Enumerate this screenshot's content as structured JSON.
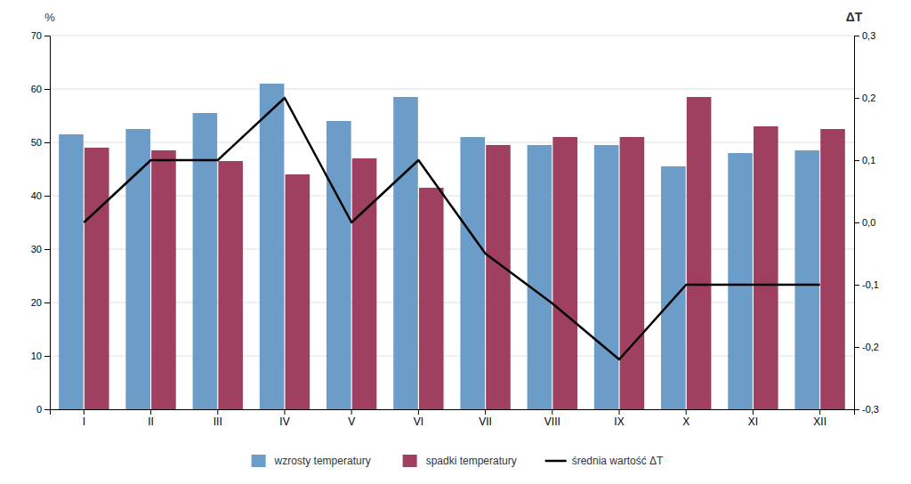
{
  "chart_data": {
    "type": "bar",
    "categories": [
      "I",
      "II",
      "III",
      "IV",
      "V",
      "VI",
      "VII",
      "VIII",
      "IX",
      "X",
      "XI",
      "XII"
    ],
    "series": [
      {
        "name": "wzrosty temperatury",
        "color": "#6B9DC8",
        "values": [
          51.5,
          52.5,
          55.5,
          61.0,
          54.0,
          58.5,
          51.0,
          49.5,
          49.5,
          45.5,
          48.0,
          48.5
        ]
      },
      {
        "name": "spadki temperatury",
        "color": "#A04060",
        "values": [
          49.0,
          48.5,
          46.5,
          44.0,
          47.0,
          41.5,
          49.5,
          51.0,
          51.0,
          58.5,
          53.0,
          52.5
        ]
      },
      {
        "name": "średnia wartość ΔT",
        "color": "#000000",
        "type": "line",
        "axis": "y2",
        "values": [
          0.0,
          0.1,
          0.1,
          0.2,
          0.0,
          0.1,
          -0.05,
          -0.13,
          -0.22,
          -0.1,
          -0.1,
          -0.1
        ]
      }
    ],
    "ylabel": "%",
    "y2label": "ΔT",
    "ylim": [
      0,
      70
    ],
    "yticks": [
      0,
      10,
      20,
      30,
      40,
      50,
      60,
      70
    ],
    "y2lim": [
      -0.3,
      0.3
    ],
    "y2ticks": [
      {
        "value": -0.3,
        "label": "-0,3"
      },
      {
        "value": -0.2,
        "label": "-0,2"
      },
      {
        "value": -0.1,
        "label": "-0,1"
      },
      {
        "value": 0.0,
        "label": "0,0"
      },
      {
        "value": 0.1,
        "label": "0,1"
      },
      {
        "value": 0.2,
        "label": "0,2"
      },
      {
        "value": 0.3,
        "label": "0,3"
      }
    ],
    "grid": true,
    "legend": "bottom"
  }
}
